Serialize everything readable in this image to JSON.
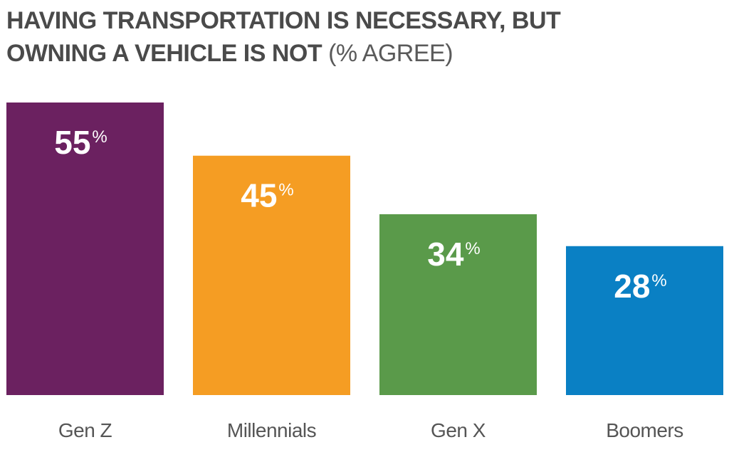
{
  "chart_data": {
    "type": "bar",
    "title_bold_line1": "HAVING TRANSPORTATION IS NECESSARY, BUT",
    "title_bold_line2": "OWNING A VEHICLE IS NOT",
    "title_suffix": "(% AGREE)",
    "categories": [
      "Gen Z",
      "Millennials",
      "Gen X",
      "Boomers"
    ],
    "values": [
      55,
      45,
      34,
      28
    ],
    "value_unit": "%",
    "colors": [
      "#6b2160",
      "#f59d23",
      "#5a9a4a",
      "#0a80c4"
    ],
    "xlabel": "",
    "ylabel": "",
    "ylim": [
      0,
      55
    ],
    "grid": false,
    "legend": "none"
  }
}
